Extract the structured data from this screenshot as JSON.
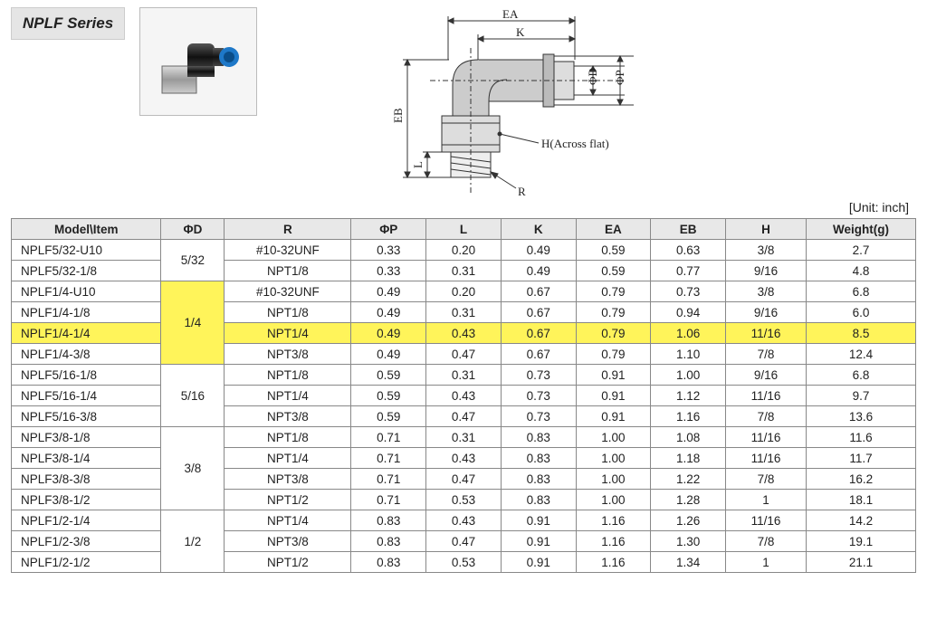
{
  "series_title": "NPLF Series",
  "unit_label": "[Unit: inch]",
  "diagram_labels": {
    "EA": "EA",
    "K": "K",
    "PhiD": "ΦD",
    "PhiP": "ΦP",
    "EB": "EB",
    "L": "L",
    "R": "R",
    "H": "H(Across flat)"
  },
  "table": {
    "columns": [
      "Model\\Item",
      "ΦD",
      "R",
      "ΦP",
      "L",
      "K",
      "EA",
      "EB",
      "H",
      "Weight(g)"
    ],
    "col_widths": [
      "130",
      "55",
      "110",
      "65",
      "65",
      "65",
      "65",
      "65",
      "70",
      "95"
    ],
    "header_bg": "#e8e8e8",
    "border_color": "#888",
    "highlight_bg": "#fff45a",
    "highlight_row_index": 4,
    "phiD_groups": [
      {
        "label": "5/32",
        "span": 2
      },
      {
        "label": "1/4",
        "span": 4,
        "highlight": true
      },
      {
        "label": "5/16",
        "span": 3
      },
      {
        "label": "3/8",
        "span": 4
      },
      {
        "label": "1/2",
        "span": 3
      }
    ],
    "rows": [
      {
        "model": "NPLF5/32-U10",
        "r": "#10-32UNF",
        "phiP": "0.33",
        "l": "0.20",
        "k": "0.49",
        "ea": "0.59",
        "eb": "0.63",
        "h": "3/8",
        "w": "2.7"
      },
      {
        "model": "NPLF5/32-1/8",
        "r": "NPT1/8",
        "phiP": "0.33",
        "l": "0.31",
        "k": "0.49",
        "ea": "0.59",
        "eb": "0.77",
        "h": "9/16",
        "w": "4.8"
      },
      {
        "model": "NPLF1/4-U10",
        "r": "#10-32UNF",
        "phiP": "0.49",
        "l": "0.20",
        "k": "0.67",
        "ea": "0.79",
        "eb": "0.73",
        "h": "3/8",
        "w": "6.8"
      },
      {
        "model": "NPLF1/4-1/8",
        "r": "NPT1/8",
        "phiP": "0.49",
        "l": "0.31",
        "k": "0.67",
        "ea": "0.79",
        "eb": "0.94",
        "h": "9/16",
        "w": "6.0"
      },
      {
        "model": "NPLF1/4-1/4",
        "r": "NPT1/4",
        "phiP": "0.49",
        "l": "0.43",
        "k": "0.67",
        "ea": "0.79",
        "eb": "1.06",
        "h": "11/16",
        "w": "8.5",
        "highlight": true
      },
      {
        "model": "NPLF1/4-3/8",
        "r": "NPT3/8",
        "phiP": "0.49",
        "l": "0.47",
        "k": "0.67",
        "ea": "0.79",
        "eb": "1.10",
        "h": "7/8",
        "w": "12.4"
      },
      {
        "model": "NPLF5/16-1/8",
        "r": "NPT1/8",
        "phiP": "0.59",
        "l": "0.31",
        "k": "0.73",
        "ea": "0.91",
        "eb": "1.00",
        "h": "9/16",
        "w": "6.8"
      },
      {
        "model": "NPLF5/16-1/4",
        "r": "NPT1/4",
        "phiP": "0.59",
        "l": "0.43",
        "k": "0.73",
        "ea": "0.91",
        "eb": "1.12",
        "h": "11/16",
        "w": "9.7"
      },
      {
        "model": "NPLF5/16-3/8",
        "r": "NPT3/8",
        "phiP": "0.59",
        "l": "0.47",
        "k": "0.73",
        "ea": "0.91",
        "eb": "1.16",
        "h": "7/8",
        "w": "13.6"
      },
      {
        "model": "NPLF3/8-1/8",
        "r": "NPT1/8",
        "phiP": "0.71",
        "l": "0.31",
        "k": "0.83",
        "ea": "1.00",
        "eb": "1.08",
        "h": "11/16",
        "w": "11.6"
      },
      {
        "model": "NPLF3/8-1/4",
        "r": "NPT1/4",
        "phiP": "0.71",
        "l": "0.43",
        "k": "0.83",
        "ea": "1.00",
        "eb": "1.18",
        "h": "11/16",
        "w": "11.7"
      },
      {
        "model": "NPLF3/8-3/8",
        "r": "NPT3/8",
        "phiP": "0.71",
        "l": "0.47",
        "k": "0.83",
        "ea": "1.00",
        "eb": "1.22",
        "h": "7/8",
        "w": "16.2"
      },
      {
        "model": "NPLF3/8-1/2",
        "r": "NPT1/2",
        "phiP": "0.71",
        "l": "0.53",
        "k": "0.83",
        "ea": "1.00",
        "eb": "1.28",
        "h": "1",
        "w": "18.1"
      },
      {
        "model": "NPLF1/2-1/4",
        "r": "NPT1/4",
        "phiP": "0.83",
        "l": "0.43",
        "k": "0.91",
        "ea": "1.16",
        "eb": "1.26",
        "h": "11/16",
        "w": "14.2"
      },
      {
        "model": "NPLF1/2-3/8",
        "r": "NPT3/8",
        "phiP": "0.83",
        "l": "0.47",
        "k": "0.91",
        "ea": "1.16",
        "eb": "1.30",
        "h": "7/8",
        "w": "19.1"
      },
      {
        "model": "NPLF1/2-1/2",
        "r": "NPT1/2",
        "phiP": "0.83",
        "l": "0.53",
        "k": "0.91",
        "ea": "1.16",
        "eb": "1.34",
        "h": "1",
        "w": "21.1"
      }
    ]
  }
}
